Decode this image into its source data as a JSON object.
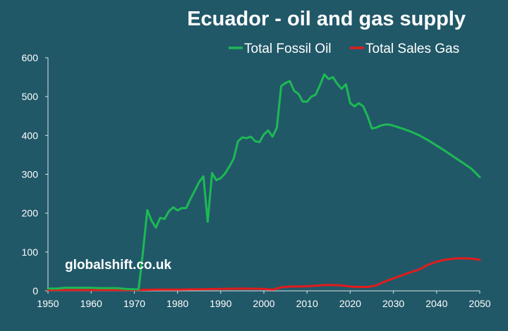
{
  "chart_data": {
    "type": "line",
    "title": "Ecuador - oil and gas supply",
    "xlabel": "",
    "ylabel": "",
    "xlim": [
      1950,
      2050
    ],
    "ylim": [
      0,
      600
    ],
    "x_ticks": [
      1950,
      1960,
      1970,
      1980,
      1990,
      2000,
      2010,
      2020,
      2030,
      2040,
      2050
    ],
    "y_ticks": [
      0,
      100,
      200,
      300,
      400,
      500,
      600
    ],
    "grid": false,
    "legend_position": "top-right",
    "watermark": "globalshift.co.uk",
    "series": [
      {
        "name": "Total Fossil Oil",
        "color": "#1db954",
        "points": [
          [
            1950,
            6
          ],
          [
            1952,
            6
          ],
          [
            1954,
            8
          ],
          [
            1956,
            8
          ],
          [
            1958,
            8
          ],
          [
            1960,
            8
          ],
          [
            1962,
            7
          ],
          [
            1964,
            7
          ],
          [
            1966,
            7
          ],
          [
            1968,
            5
          ],
          [
            1970,
            4
          ],
          [
            1971,
            4
          ],
          [
            1972,
            100
          ],
          [
            1973,
            208
          ],
          [
            1974,
            180
          ],
          [
            1975,
            163
          ],
          [
            1976,
            188
          ],
          [
            1977,
            185
          ],
          [
            1978,
            205
          ],
          [
            1979,
            215
          ],
          [
            1980,
            207
          ],
          [
            1981,
            213
          ],
          [
            1982,
            213
          ],
          [
            1983,
            237
          ],
          [
            1984,
            258
          ],
          [
            1985,
            280
          ],
          [
            1986,
            295
          ],
          [
            1987,
            178
          ],
          [
            1988,
            303
          ],
          [
            1989,
            285
          ],
          [
            1990,
            290
          ],
          [
            1991,
            302
          ],
          [
            1992,
            320
          ],
          [
            1993,
            340
          ],
          [
            1994,
            385
          ],
          [
            1995,
            395
          ],
          [
            1996,
            393
          ],
          [
            1997,
            397
          ],
          [
            1998,
            385
          ],
          [
            1999,
            383
          ],
          [
            2000,
            403
          ],
          [
            2001,
            413
          ],
          [
            2002,
            397
          ],
          [
            2003,
            420
          ],
          [
            2004,
            527
          ],
          [
            2005,
            535
          ],
          [
            2006,
            540
          ],
          [
            2007,
            515
          ],
          [
            2008,
            507
          ],
          [
            2009,
            487
          ],
          [
            2010,
            487
          ],
          [
            2011,
            500
          ],
          [
            2012,
            505
          ],
          [
            2013,
            530
          ],
          [
            2014,
            557
          ],
          [
            2015,
            545
          ],
          [
            2016,
            550
          ],
          [
            2017,
            533
          ],
          [
            2018,
            520
          ],
          [
            2019,
            532
          ],
          [
            2020,
            483
          ],
          [
            2021,
            475
          ],
          [
            2022,
            483
          ],
          [
            2023,
            475
          ],
          [
            2024,
            450
          ],
          [
            2025,
            418
          ],
          [
            2026,
            420
          ],
          [
            2027,
            425
          ],
          [
            2028,
            428
          ],
          [
            2029,
            428
          ],
          [
            2030,
            425
          ],
          [
            2032,
            418
          ],
          [
            2034,
            410
          ],
          [
            2036,
            400
          ],
          [
            2038,
            388
          ],
          [
            2040,
            374
          ],
          [
            2042,
            360
          ],
          [
            2044,
            345
          ],
          [
            2046,
            330
          ],
          [
            2048,
            315
          ],
          [
            2050,
            293
          ]
        ]
      },
      {
        "name": "Total Sales Gas",
        "color": "#e21b1b",
        "points": [
          [
            1950,
            2
          ],
          [
            1955,
            2
          ],
          [
            1960,
            2
          ],
          [
            1965,
            2
          ],
          [
            1970,
            2
          ],
          [
            1975,
            3
          ],
          [
            1980,
            3
          ],
          [
            1985,
            4
          ],
          [
            1990,
            5
          ],
          [
            1995,
            6
          ],
          [
            2000,
            5
          ],
          [
            2002,
            3
          ],
          [
            2004,
            9
          ],
          [
            2006,
            11
          ],
          [
            2008,
            11
          ],
          [
            2010,
            12
          ],
          [
            2012,
            13
          ],
          [
            2014,
            15
          ],
          [
            2016,
            15
          ],
          [
            2018,
            14
          ],
          [
            2020,
            11
          ],
          [
            2022,
            10
          ],
          [
            2024,
            10
          ],
          [
            2026,
            14
          ],
          [
            2028,
            24
          ],
          [
            2030,
            32
          ],
          [
            2032,
            40
          ],
          [
            2034,
            48
          ],
          [
            2036,
            55
          ],
          [
            2038,
            67
          ],
          [
            2040,
            75
          ],
          [
            2042,
            80
          ],
          [
            2044,
            83
          ],
          [
            2046,
            84
          ],
          [
            2048,
            83
          ],
          [
            2050,
            80
          ]
        ]
      }
    ]
  }
}
